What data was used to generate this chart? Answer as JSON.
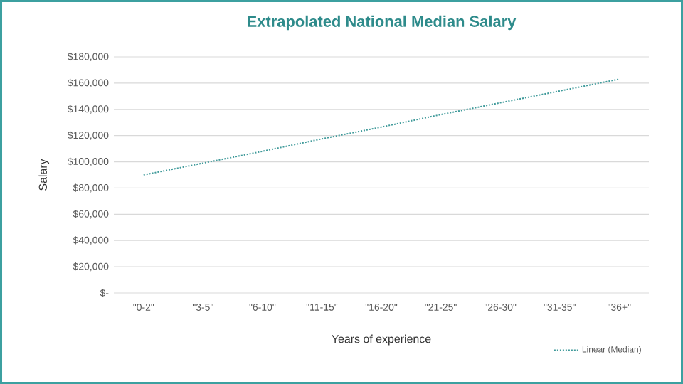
{
  "chart_data": {
    "type": "line",
    "title": "Extrapolated National Median Salary",
    "xlabel": "Years of experience",
    "ylabel": "Salary",
    "categories": [
      "\"0-2\"",
      "\"3-5\"",
      "\"6-10\"",
      "\"11-15\"",
      "\"16-20\"",
      "\"21-25\"",
      "\"26-30\"",
      "\"31-35\"",
      "\"36+\""
    ],
    "series": [
      {
        "name": "Linear (Median)",
        "color": "#3f9a9a",
        "line_style": "dotted",
        "values": [
          90000,
          99000,
          108000,
          117500,
          126500,
          136000,
          145000,
          154000,
          163000
        ]
      }
    ],
    "ylim": [
      0,
      180000
    ],
    "yticks": [
      {
        "value": 0,
        "label": "$-"
      },
      {
        "value": 20000,
        "label": "$20,000"
      },
      {
        "value": 40000,
        "label": "$40,000"
      },
      {
        "value": 60000,
        "label": "$60,000"
      },
      {
        "value": 80000,
        "label": "$80,000"
      },
      {
        "value": 100000,
        "label": "$100,000"
      },
      {
        "value": 120000,
        "label": "$120,000"
      },
      {
        "value": 140000,
        "label": "$140,000"
      },
      {
        "value": 160000,
        "label": "$160,000"
      },
      {
        "value": 180000,
        "label": "$180,000"
      }
    ],
    "grid": "y",
    "legend": "bottom right",
    "marker": "none"
  }
}
